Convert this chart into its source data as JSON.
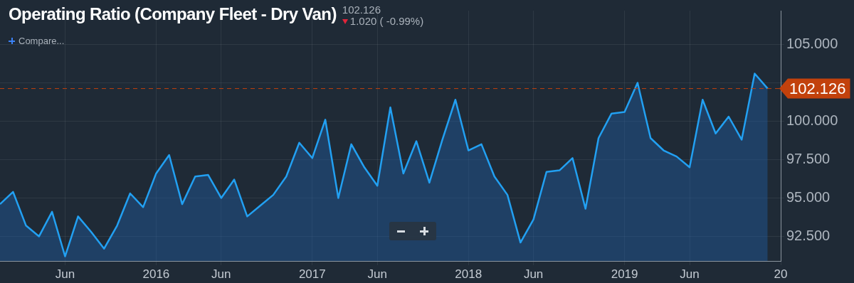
{
  "chart_data": {
    "type": "area",
    "title": "Operating Ratio (Company Fleet - Dry Van)",
    "annotations": [
      "102.126",
      "1.020 ( -0.99%)",
      "Compare..."
    ],
    "x": [
      "2015-01",
      "2015-02",
      "2015-03",
      "2015-04",
      "2015-05",
      "2015-06",
      "2015-07",
      "2015-08",
      "2015-09",
      "2015-10",
      "2015-11",
      "2015-12",
      "2016-01",
      "2016-02",
      "2016-03",
      "2016-04",
      "2016-05",
      "2016-06",
      "2016-07",
      "2016-08",
      "2016-09",
      "2016-10",
      "2016-11",
      "2016-12",
      "2017-01",
      "2017-02",
      "2017-03",
      "2017-04",
      "2017-05",
      "2017-06",
      "2017-07",
      "2017-08",
      "2017-09",
      "2017-10",
      "2017-11",
      "2017-12",
      "2018-01",
      "2018-02",
      "2018-03",
      "2018-04",
      "2018-05",
      "2018-06",
      "2018-07",
      "2018-08",
      "2018-09",
      "2018-10",
      "2018-11",
      "2018-12",
      "2019-01",
      "2019-02",
      "2019-03",
      "2019-04",
      "2019-05",
      "2019-06",
      "2019-07",
      "2019-08",
      "2019-09",
      "2019-10",
      "2019-11",
      "2019-12"
    ],
    "values": [
      94.6,
      95.4,
      93.2,
      92.5,
      94.1,
      91.2,
      93.8,
      92.8,
      91.7,
      93.2,
      95.3,
      94.4,
      96.6,
      97.8,
      94.6,
      96.4,
      96.5,
      95.0,
      96.2,
      93.8,
      94.5,
      95.2,
      96.4,
      98.6,
      97.6,
      100.1,
      95.0,
      98.5,
      97.0,
      95.8,
      100.9,
      96.6,
      98.7,
      96.0,
      98.8,
      101.4,
      98.1,
      98.5,
      96.4,
      95.2,
      92.1,
      93.6,
      96.7,
      96.8,
      97.6,
      94.3,
      98.9,
      100.5,
      100.6,
      102.5,
      98.9,
      98.1,
      97.7,
      97.0,
      101.4,
      99.2,
      100.3,
      98.8,
      103.1,
      102.126
    ],
    "color": "#22a0f2",
    "xlim": [
      "2015-01",
      "2020-01"
    ],
    "xticks": [
      {
        "value": "2015-06",
        "label": "Jun"
      },
      {
        "value": "2016-01",
        "label": "2016"
      },
      {
        "value": "2016-06",
        "label": "Jun"
      },
      {
        "value": "2017-01",
        "label": "2017"
      },
      {
        "value": "2017-06",
        "label": "Jun"
      },
      {
        "value": "2018-01",
        "label": "2018"
      },
      {
        "value": "2018-06",
        "label": "Jun"
      },
      {
        "value": "2019-01",
        "label": "2019"
      },
      {
        "value": "2019-06",
        "label": "Jun"
      },
      {
        "value": "2020-01",
        "label": "20"
      }
    ],
    "ylim": [
      90.9,
      107.2
    ],
    "yticks": [
      {
        "value": 92.5,
        "label": "92.500"
      },
      {
        "value": 95,
        "label": "95.000"
      },
      {
        "value": 97.5,
        "label": "97.500"
      },
      {
        "value": 100,
        "label": "100.000"
      },
      {
        "value": 102.5,
        "label": null
      },
      {
        "value": 105,
        "label": "105.000"
      }
    ],
    "ref_lines": [
      {
        "axis": "y",
        "value": 102.126,
        "label": "102.126",
        "color": "#c2410c",
        "line_style": "dashed"
      }
    ],
    "grid": true,
    "legend": false,
    "marker": "none",
    "line_style": "solid"
  }
}
